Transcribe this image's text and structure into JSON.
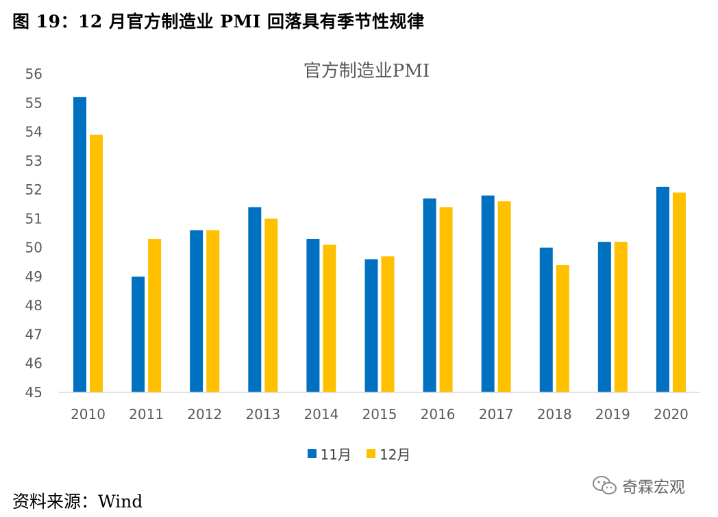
{
  "caption": "图 19：12 月官方制造业 PMI 回落具有季节性规律",
  "source": "资料来源：Wind",
  "watermark": {
    "icon": "wechat-icon",
    "text": "奇霖宏观"
  },
  "chart_data": {
    "type": "bar",
    "title": "官方制造业PMI",
    "categories": [
      "2010",
      "2011",
      "2012",
      "2013",
      "2014",
      "2015",
      "2016",
      "2017",
      "2018",
      "2019",
      "2020"
    ],
    "series": [
      {
        "name": "11月",
        "color": "#0070c0",
        "values": [
          55.2,
          49.0,
          50.6,
          51.4,
          50.3,
          49.6,
          51.7,
          51.8,
          50.0,
          50.2,
          52.1
        ]
      },
      {
        "name": "12月",
        "color": "#ffc000",
        "values": [
          53.9,
          50.3,
          50.6,
          51.0,
          50.1,
          49.7,
          51.4,
          51.6,
          49.4,
          50.2,
          51.9
        ]
      }
    ],
    "ylim": [
      45,
      56
    ],
    "yticks": [
      "45",
      "46",
      "47",
      "48",
      "49",
      "50",
      "51",
      "52",
      "53",
      "54",
      "55",
      "56"
    ],
    "grid": false,
    "legend": "bottom"
  }
}
